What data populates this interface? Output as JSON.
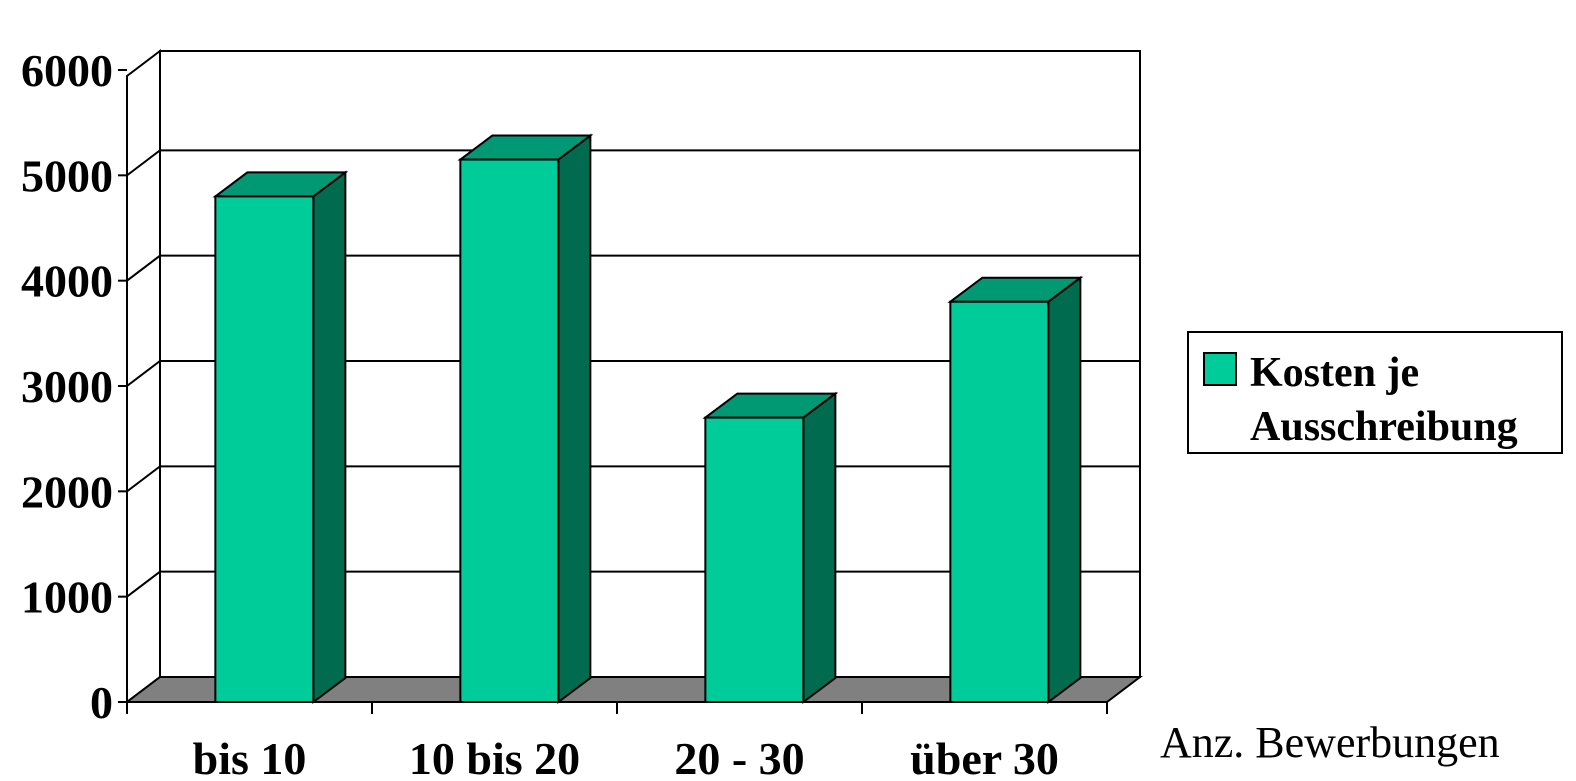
{
  "chart_data": {
    "type": "bar",
    "style": "3d-column",
    "categories": [
      "bis 10",
      "10 bis 20",
      "20 - 30",
      "über 30"
    ],
    "series": [
      {
        "name": "Kosten je Ausschreibung",
        "values": [
          4800,
          5150,
          2700,
          3800
        ]
      }
    ],
    "legend_lines": [
      "Kosten je",
      "Ausschreibung"
    ],
    "xlabel": "Anz. Bewerbungen",
    "ylabel": "",
    "ylim": [
      0,
      6000
    ],
    "yticks": [
      "0",
      "1000",
      "2000",
      "3000",
      "4000",
      "5000",
      "6000"
    ],
    "grid": true,
    "legend_position": "right",
    "colors": {
      "bar_front": "#00CC99",
      "bar_top": "#009973",
      "bar_side": "#006B4F",
      "floor": "#808080",
      "walls": "#ffffff",
      "outline": "#000000"
    }
  }
}
